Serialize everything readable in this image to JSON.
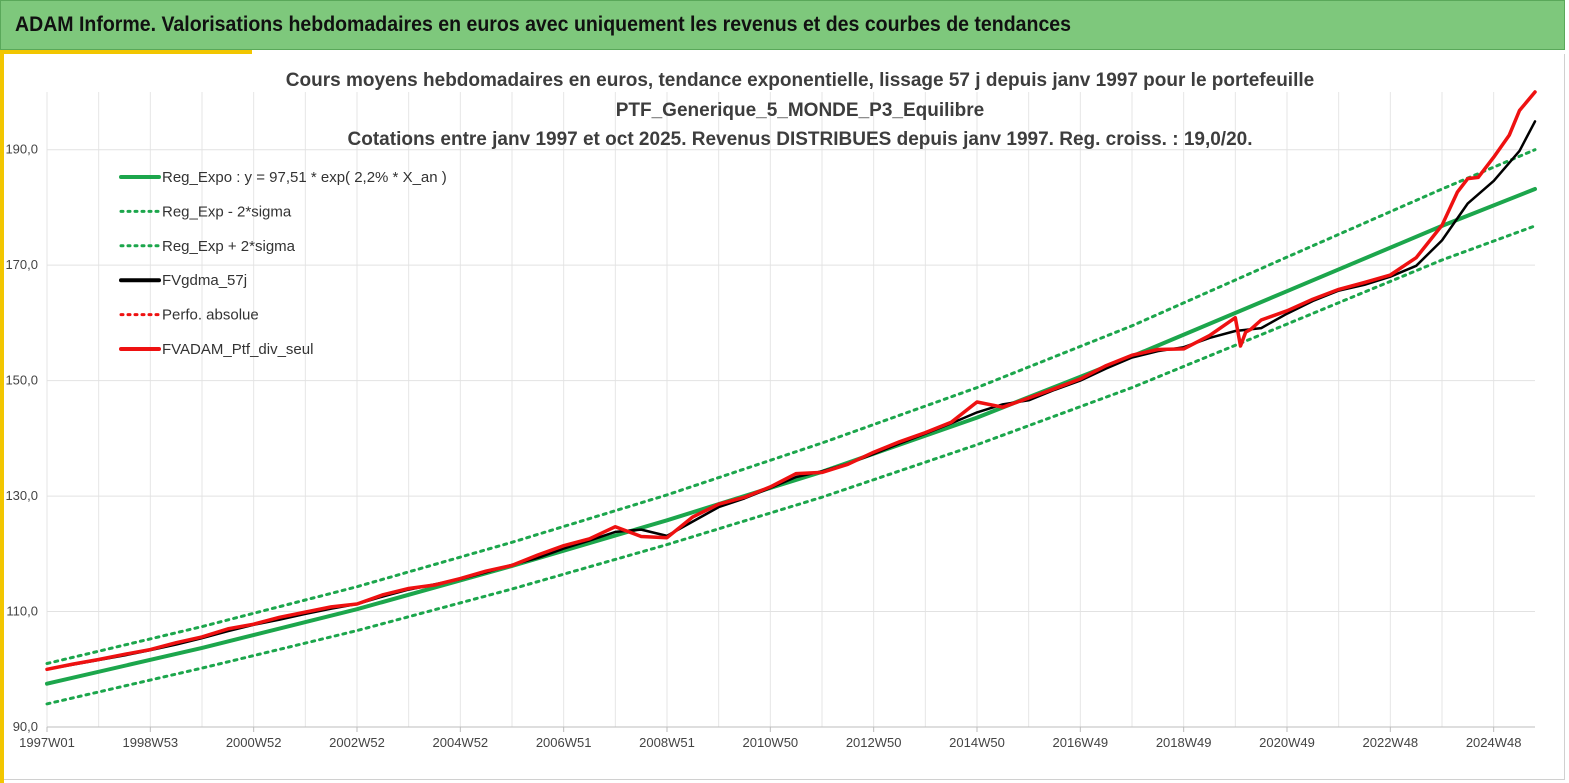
{
  "banner": {
    "title": "ADAM Informe. Valorisations hebdomadaires en euros avec uniquement les revenus et des courbes de tendances"
  },
  "colors": {
    "banner_bg": "#7ec87c",
    "accent": "#f2c600",
    "trend": "#1ca64c",
    "red": "#ee1111",
    "black": "#000000"
  },
  "chart_data": {
    "type": "line",
    "title_lines": [
      "Cours moyens hebdomadaires  en euros, tendance exponentielle, lissage 57 j depuis janv 1997 pour le portefeuille",
      "PTF_Generique_5_MONDE_P3_Equilibre",
      "Cotations  entre janv 1997 et oct 2025. Revenus DISTRIBUES depuis janv 1997. Reg. croiss. : 19,0/20."
    ],
    "ylim": [
      90,
      200
    ],
    "y_ticks": [
      90,
      110,
      130,
      150,
      170,
      190
    ],
    "y_tick_labels": [
      "90,0",
      "110,0",
      "130,0",
      "150,0",
      "170,0",
      "190,0"
    ],
    "xlim": [
      1997.0,
      2025.8
    ],
    "x_ticks": [
      1997.0,
      1999.0,
      2001.0,
      2003.0,
      2005.0,
      2007.0,
      2009.0,
      2011.0,
      2013.0,
      2015.0,
      2017.0,
      2019.0,
      2021.0,
      2023.0,
      2025.0
    ],
    "x_tick_labels": [
      "1997W01",
      "1998W53",
      "2000W52",
      "2002W52",
      "2004W52",
      "2006W51",
      "2008W51",
      "2010W50",
      "2012W50",
      "2014W50",
      "2016W49",
      "2018W49",
      "2020W49",
      "2022W48",
      "2024W48"
    ],
    "grid": true,
    "legend_position": "top-left",
    "legend": [
      {
        "label": "Reg_Expo : y = 97,51 * exp( 2,2% *  X_an )",
        "color": "#1ca64c",
        "style": "solid"
      },
      {
        "label": "Reg_Exp - 2*sigma",
        "color": "#1ca64c",
        "style": "dotted"
      },
      {
        "label": "Reg_Exp + 2*sigma",
        "color": "#1ca64c",
        "style": "dotted"
      },
      {
        "label": "FVgdma_57j",
        "color": "#000000",
        "style": "solid"
      },
      {
        "label": "Perfo. absolue",
        "color": "#ee1111",
        "style": "dotted"
      },
      {
        "label": "FVADAM_Ptf_div_seul",
        "color": "#ee1111",
        "style": "solid"
      }
    ],
    "series": [
      {
        "name": "Reg_Expo : y = 97,51 * exp( 2,2% *  X_an )",
        "x": [
          1997,
          2000,
          2003,
          2006,
          2009,
          2012,
          2015,
          2018,
          2021,
          2024,
          2025.8
        ],
        "values": [
          97.5,
          103.7,
          110.4,
          117.9,
          125.8,
          134.2,
          143.6,
          154.2,
          165.5,
          176.8,
          183.2
        ]
      },
      {
        "name": "Reg_Exp - 2*sigma",
        "x": [
          1997,
          2000,
          2003,
          2006,
          2009,
          2012,
          2015,
          2018,
          2021,
          2024,
          2025.8
        ],
        "values": [
          94.0,
          100.2,
          106.7,
          113.9,
          121.6,
          129.8,
          138.9,
          148.8,
          159.8,
          170.9,
          176.8
        ]
      },
      {
        "name": "Reg_Exp + 2*sigma",
        "x": [
          1997,
          2000,
          2003,
          2006,
          2009,
          2012,
          2015,
          2018,
          2021,
          2024,
          2025.8
        ],
        "values": [
          101.0,
          107.4,
          114.3,
          122.0,
          130.2,
          139.2,
          148.8,
          159.5,
          171.4,
          183.2,
          190.0
        ]
      },
      {
        "name": "FVgdma_57j",
        "x": [
          1997.0,
          1997.5,
          1998.0,
          1998.5,
          1999.0,
          1999.5,
          2000.0,
          2000.5,
          2001.0,
          2001.5,
          2002.0,
          2002.5,
          2003.0,
          2003.5,
          2004.0,
          2004.5,
          2005.0,
          2005.5,
          2006.0,
          2006.5,
          2007.0,
          2007.5,
          2008.0,
          2008.5,
          2009.0,
          2009.5,
          2010.0,
          2010.5,
          2011.0,
          2011.5,
          2012.0,
          2012.5,
          2013.0,
          2013.5,
          2014.0,
          2014.5,
          2015.0,
          2015.5,
          2016.0,
          2016.5,
          2017.0,
          2017.5,
          2018.0,
          2018.5,
          2019.0,
          2019.5,
          2020.0,
          2020.5,
          2021.0,
          2021.5,
          2022.0,
          2022.5,
          2023.0,
          2023.5,
          2024.0,
          2024.5,
          2025.0,
          2025.5,
          2025.8
        ],
        "values": [
          100.0,
          100.8,
          101.6,
          102.4,
          103.3,
          104.3,
          105.4,
          106.6,
          107.7,
          108.6,
          109.6,
          110.5,
          111.3,
          112.6,
          113.8,
          114.7,
          115.6,
          116.8,
          118.1,
          119.3,
          120.9,
          122.3,
          123.8,
          124.2,
          123.1,
          125.6,
          128.1,
          129.6,
          131.4,
          133.3,
          134.3,
          135.6,
          137.3,
          139.1,
          140.8,
          142.6,
          144.5,
          145.9,
          146.6,
          148.4,
          150.0,
          152.1,
          154.0,
          155.1,
          155.8,
          157.4,
          158.6,
          159.1,
          161.6,
          163.8,
          165.6,
          166.6,
          168.0,
          169.9,
          174.3,
          180.7,
          184.6,
          189.8,
          194.9
        ]
      },
      {
        "name": "FVADAM_Ptf_div_seul",
        "x": [
          1997.0,
          1997.5,
          1998.0,
          1998.5,
          1999.0,
          1999.5,
          2000.0,
          2000.5,
          2001.0,
          2001.5,
          2002.0,
          2002.5,
          2003.0,
          2003.5,
          2004.0,
          2004.5,
          2005.0,
          2005.5,
          2006.0,
          2006.5,
          2007.0,
          2007.5,
          2008.0,
          2008.5,
          2009.0,
          2009.5,
          2010.0,
          2010.5,
          2011.0,
          2011.5,
          2012.0,
          2012.5,
          2013.0,
          2013.5,
          2014.0,
          2014.5,
          2015.0,
          2015.5,
          2016.0,
          2016.5,
          2017.0,
          2017.5,
          2018.0,
          2018.5,
          2019.0,
          2019.5,
          2020.0,
          2020.1,
          2020.2,
          2020.3,
          2020.5,
          2021.0,
          2021.5,
          2022.0,
          2022.5,
          2023.0,
          2023.5,
          2024.0,
          2024.3,
          2024.5,
          2024.7,
          2025.0,
          2025.3,
          2025.5,
          2025.8
        ],
        "values": [
          100.0,
          100.9,
          101.7,
          102.6,
          103.4,
          104.6,
          105.6,
          107.0,
          107.8,
          109.0,
          109.9,
          110.8,
          111.3,
          112.9,
          114.0,
          114.6,
          115.7,
          117.0,
          118.0,
          119.8,
          121.4,
          122.6,
          124.7,
          123.0,
          122.8,
          126.4,
          128.6,
          129.8,
          131.6,
          133.9,
          134.1,
          135.5,
          137.6,
          139.4,
          141.0,
          142.8,
          146.3,
          145.4,
          147.0,
          148.6,
          150.3,
          152.6,
          154.4,
          155.4,
          155.5,
          157.8,
          160.9,
          156.0,
          158.4,
          158.9,
          160.5,
          162.1,
          164.1,
          165.8,
          167.0,
          168.3,
          171.3,
          176.9,
          182.7,
          185.0,
          185.2,
          188.7,
          192.5,
          196.8,
          200.0
        ]
      }
    ]
  }
}
